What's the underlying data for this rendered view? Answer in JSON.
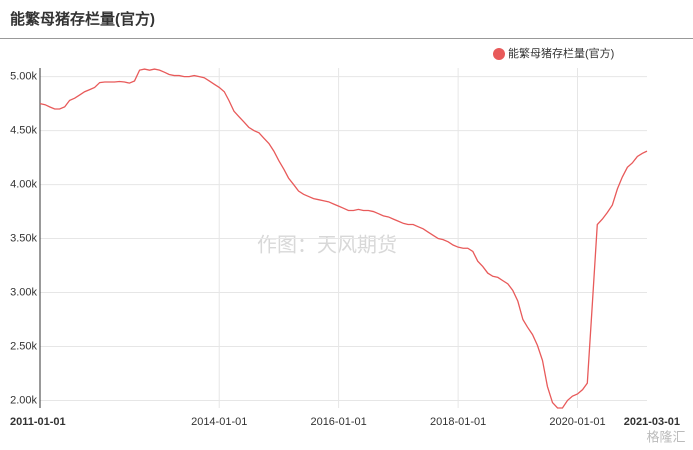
{
  "chart_data": {
    "type": "line",
    "title": "能繁母猪存栏量(官方)",
    "watermark": "作图：天风期货",
    "logo_text": "格隆汇",
    "x": [
      "2011-01-01",
      "2011-02-01",
      "2011-03-01",
      "2011-04-01",
      "2011-05-01",
      "2011-06-01",
      "2011-07-01",
      "2011-08-01",
      "2011-09-01",
      "2011-10-01",
      "2011-11-01",
      "2011-12-01",
      "2012-01-01",
      "2012-02-01",
      "2012-03-01",
      "2012-04-01",
      "2012-05-01",
      "2012-06-01",
      "2012-07-01",
      "2012-08-01",
      "2012-09-01",
      "2012-10-01",
      "2012-11-01",
      "2012-12-01",
      "2013-01-01",
      "2013-02-01",
      "2013-03-01",
      "2013-04-01",
      "2013-05-01",
      "2013-06-01",
      "2013-07-01",
      "2013-08-01",
      "2013-09-01",
      "2013-10-01",
      "2013-11-01",
      "2013-12-01",
      "2014-01-01",
      "2014-02-01",
      "2014-03-01",
      "2014-04-01",
      "2014-05-01",
      "2014-06-01",
      "2014-07-01",
      "2014-08-01",
      "2014-09-01",
      "2014-10-01",
      "2014-11-01",
      "2014-12-01",
      "2015-01-01",
      "2015-02-01",
      "2015-03-01",
      "2015-04-01",
      "2015-05-01",
      "2015-06-01",
      "2015-07-01",
      "2015-08-01",
      "2015-09-01",
      "2015-10-01",
      "2015-11-01",
      "2015-12-01",
      "2016-01-01",
      "2016-02-01",
      "2016-03-01",
      "2016-04-01",
      "2016-05-01",
      "2016-06-01",
      "2016-07-01",
      "2016-08-01",
      "2016-09-01",
      "2016-10-01",
      "2016-11-01",
      "2016-12-01",
      "2017-01-01",
      "2017-02-01",
      "2017-03-01",
      "2017-04-01",
      "2017-05-01",
      "2017-06-01",
      "2017-07-01",
      "2017-08-01",
      "2017-09-01",
      "2017-10-01",
      "2017-11-01",
      "2017-12-01",
      "2018-01-01",
      "2018-02-01",
      "2018-03-01",
      "2018-04-01",
      "2018-05-01",
      "2018-06-01",
      "2018-07-01",
      "2018-08-01",
      "2018-09-01",
      "2018-10-01",
      "2018-11-01",
      "2018-12-01",
      "2019-01-01",
      "2019-02-01",
      "2019-03-01",
      "2019-04-01",
      "2019-05-01",
      "2019-06-01",
      "2019-07-01",
      "2019-08-01",
      "2019-09-01",
      "2019-10-01",
      "2019-11-01",
      "2019-12-01",
      "2020-01-01",
      "2020-02-01",
      "2020-03-01",
      "2020-04-01",
      "2020-05-01",
      "2020-06-01",
      "2020-07-01",
      "2020-08-01",
      "2020-09-01",
      "2020-10-01",
      "2020-11-01",
      "2020-12-01",
      "2021-01-01",
      "2021-02-01",
      "2021-03-01"
    ],
    "series": [
      {
        "name": "能繁母猪存栏量(官方)",
        "color": "#e85a5a",
        "values": [
          4750,
          4740,
          4720,
          4700,
          4700,
          4720,
          4780,
          4800,
          4830,
          4860,
          4880,
          4900,
          4945,
          4950,
          4950,
          4950,
          4955,
          4950,
          4940,
          4960,
          5060,
          5070,
          5060,
          5070,
          5060,
          5040,
          5020,
          5010,
          5010,
          5000,
          5000,
          5010,
          5000,
          4990,
          4960,
          4930,
          4900,
          4860,
          4780,
          4680,
          4630,
          4580,
          4530,
          4500,
          4480,
          4430,
          4380,
          4310,
          4220,
          4140,
          4060,
          4000,
          3940,
          3910,
          3890,
          3870,
          3860,
          3850,
          3840,
          3820,
          3800,
          3780,
          3760,
          3760,
          3770,
          3760,
          3760,
          3750,
          3730,
          3710,
          3700,
          3680,
          3660,
          3640,
          3630,
          3630,
          3610,
          3590,
          3560,
          3530,
          3500,
          3490,
          3470,
          3440,
          3420,
          3410,
          3410,
          3380,
          3290,
          3240,
          3180,
          3150,
          3140,
          3110,
          3080,
          3020,
          2920,
          2750,
          2680,
          2610,
          2510,
          2370,
          2130,
          1980,
          1930,
          1930,
          2000,
          2040,
          2060,
          2100,
          2160,
          2900,
          3630,
          3680,
          3740,
          3810,
          3960,
          4070,
          4160,
          4200,
          4260,
          4290,
          4310
        ]
      }
    ],
    "xlim": [
      "2011-01-01",
      "2021-03-01"
    ],
    "xticks": [
      "2011-01-01",
      "2014-01-01",
      "2016-01-01",
      "2018-01-01",
      "2020-01-01",
      "2021-03-01"
    ],
    "ylim": [
      1930,
      5080
    ],
    "yticks": [
      {
        "value": 2000,
        "label": "2.00k"
      },
      {
        "value": 2500,
        "label": "2.50k"
      },
      {
        "value": 3000,
        "label": "3.00k"
      },
      {
        "value": 3500,
        "label": "3.50k"
      },
      {
        "value": 4000,
        "label": "4.00k"
      },
      {
        "value": 4500,
        "label": "4.50k"
      },
      {
        "value": 5000,
        "label": "5.00k"
      }
    ],
    "grid": true,
    "legend": "top-right"
  }
}
